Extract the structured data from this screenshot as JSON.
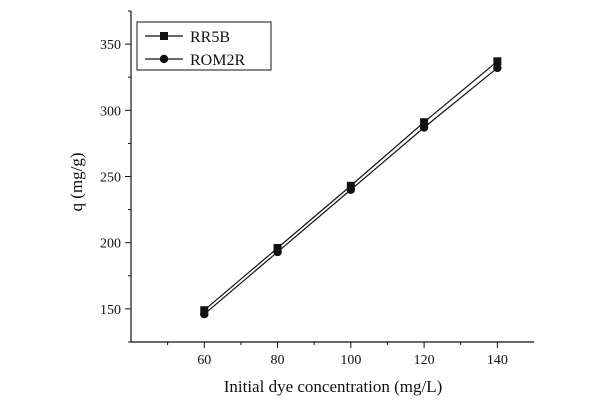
{
  "chart_data": {
    "type": "line",
    "title": "",
    "xlabel": "Initial dye concentration (mg/L)",
    "ylabel": "q (mg/g)",
    "x": [
      60,
      80,
      100,
      120,
      140
    ],
    "xticks": [
      "60",
      "80",
      "100",
      "120",
      "140"
    ],
    "yticks": [
      "150",
      "200",
      "250",
      "300",
      "350"
    ],
    "xlim": [
      40,
      150
    ],
    "ylim": [
      125,
      375
    ],
    "grid": false,
    "legend_position": "top-left",
    "series": [
      {
        "name": "RR5B",
        "marker": "square",
        "values": [
          149,
          196,
          243,
          291,
          337
        ]
      },
      {
        "name": "ROM2R",
        "marker": "circle",
        "values": [
          146,
          193,
          240,
          287,
          332
        ]
      }
    ]
  }
}
